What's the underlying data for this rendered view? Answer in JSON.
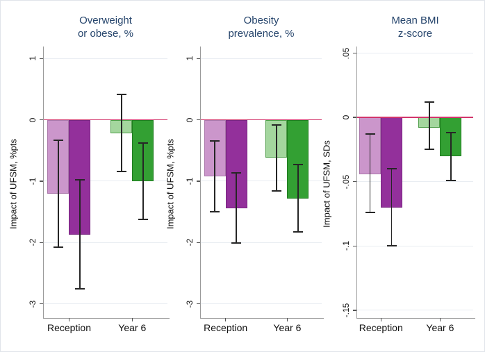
{
  "figure": {
    "background": "#ffffff",
    "border_color": "#e0e4e9",
    "title_color": "#26456c",
    "text_color": "#111111",
    "axis_color": "#9a9a9a",
    "tick_color": "#555555",
    "grid_color": "#e9edf2",
    "zero_line_color": "#d2356b",
    "errorbar_color": "#262626"
  },
  "chart_data": [
    {
      "type": "bar",
      "title_lines": [
        "Overweight",
        "or obese, %"
      ],
      "ylabel": "Impact of UFSM, %pts",
      "categories": [
        "Reception",
        "Year 6"
      ],
      "yticks": [
        1,
        0,
        -1,
        -2,
        -3
      ],
      "ytick_labels": [
        "1",
        "0",
        "-1",
        "-2",
        "-3"
      ],
      "ylim": [
        1.15,
        -3.23
      ],
      "zero_line": 0,
      "grid": true,
      "legend": "none",
      "bars": [
        {
          "category": "Reception",
          "slot": 0,
          "value": -1.2,
          "ci_high": -0.33,
          "ci_low": -2.08,
          "fill": "#cb96cb",
          "stroke": "#aa77aa"
        },
        {
          "category": "Reception",
          "slot": 1,
          "value": -1.87,
          "ci_high": -0.98,
          "ci_low": -2.75,
          "fill": "#93309b",
          "stroke": "#782580"
        },
        {
          "category": "Year 6",
          "slot": 0,
          "value": -0.22,
          "ci_high": 0.41,
          "ci_low": -0.84,
          "fill": "#a4d69e",
          "stroke": "#4f9d49"
        },
        {
          "category": "Year 6",
          "slot": 1,
          "value": -1.0,
          "ci_high": -0.38,
          "ci_low": -1.62,
          "fill": "#33a033",
          "stroke": "#1f7c1f"
        }
      ]
    },
    {
      "type": "bar",
      "title_lines": [
        "Obesity",
        "prevalence, %"
      ],
      "ylabel": "Impact of UFSM, %pts",
      "categories": [
        "Reception",
        "Year 6"
      ],
      "yticks": [
        1,
        0,
        -1,
        -2,
        -3
      ],
      "ytick_labels": [
        "1",
        "0",
        "-1",
        "-2",
        "-3"
      ],
      "ylim": [
        1.15,
        -3.23
      ],
      "zero_line": 0,
      "grid": true,
      "legend": "none",
      "bars": [
        {
          "category": "Reception",
          "slot": 0,
          "value": -0.92,
          "ci_high": -0.34,
          "ci_low": -1.5,
          "fill": "#cb96cb",
          "stroke": "#aa77aa"
        },
        {
          "category": "Reception",
          "slot": 1,
          "value": -1.44,
          "ci_high": -0.87,
          "ci_low": -2.01,
          "fill": "#93309b",
          "stroke": "#782580"
        },
        {
          "category": "Year 6",
          "slot": 0,
          "value": -0.62,
          "ci_high": -0.08,
          "ci_low": -1.16,
          "fill": "#a4d69e",
          "stroke": "#4f9d49"
        },
        {
          "category": "Year 6",
          "slot": 1,
          "value": -1.28,
          "ci_high": -0.73,
          "ci_low": -1.83,
          "fill": "#33a033",
          "stroke": "#1f7c1f"
        }
      ]
    },
    {
      "type": "bar",
      "title_lines": [
        "Mean BMI",
        "z-score"
      ],
      "ylabel": "Impact of UFSM, SDs",
      "categories": [
        "Reception",
        "Year 6"
      ],
      "yticks": [
        0.05,
        0,
        -0.05,
        -0.1,
        -0.15
      ],
      "ytick_labels": [
        ".05",
        "0",
        "-.05",
        "-.1",
        "-.15"
      ],
      "ylim": [
        0.053,
        -0.156
      ],
      "zero_line": 0,
      "grid": true,
      "legend": "none",
      "bars": [
        {
          "category": "Reception",
          "slot": 0,
          "value": -0.044,
          "ci_high": -0.013,
          "ci_low": -0.074,
          "fill": "#cb96cb",
          "stroke": "#aa77aa"
        },
        {
          "category": "Reception",
          "slot": 1,
          "value": -0.07,
          "ci_high": -0.04,
          "ci_low": -0.1,
          "fill": "#93309b",
          "stroke": "#782580"
        },
        {
          "category": "Year 6",
          "slot": 0,
          "value": -0.008,
          "ci_high": 0.012,
          "ci_low": -0.025,
          "fill": "#a4d69e",
          "stroke": "#4f9d49"
        },
        {
          "category": "Year 6",
          "slot": 1,
          "value": -0.03,
          "ci_high": -0.012,
          "ci_low": -0.049,
          "fill": "#33a033",
          "stroke": "#1f7c1f"
        }
      ]
    }
  ]
}
